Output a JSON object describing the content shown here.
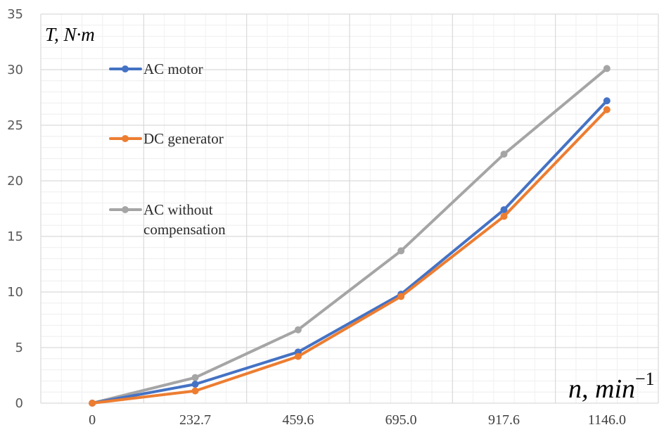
{
  "chart_data": {
    "type": "line",
    "categories": [
      "0",
      "232.7",
      "459.6",
      "695.0",
      "917.6",
      "1146.0"
    ],
    "ylim": [
      0,
      35
    ],
    "yticks": [
      0,
      5,
      10,
      15,
      20,
      25,
      30,
      35
    ],
    "grid": true,
    "legend_position": "left-inside",
    "ylabel": "T, N·m",
    "xlabel": "n, min⁻¹",
    "series": [
      {
        "name": "AC motor",
        "color": "#4472C4",
        "values": [
          0,
          1.7,
          4.6,
          9.8,
          17.4,
          27.2
        ]
      },
      {
        "name": "DC generator",
        "color": "#ED7D31",
        "values": [
          0,
          1.1,
          4.2,
          9.6,
          16.8,
          26.4
        ]
      },
      {
        "name": "AC without compensation",
        "color": "#A5A5A5",
        "values": [
          0,
          2.3,
          6.6,
          13.7,
          22.4,
          30.1
        ]
      }
    ],
    "legend_lines": [
      [
        "AC motor"
      ],
      [
        "DC generator"
      ],
      [
        "AC without",
        "compensation"
      ]
    ]
  }
}
